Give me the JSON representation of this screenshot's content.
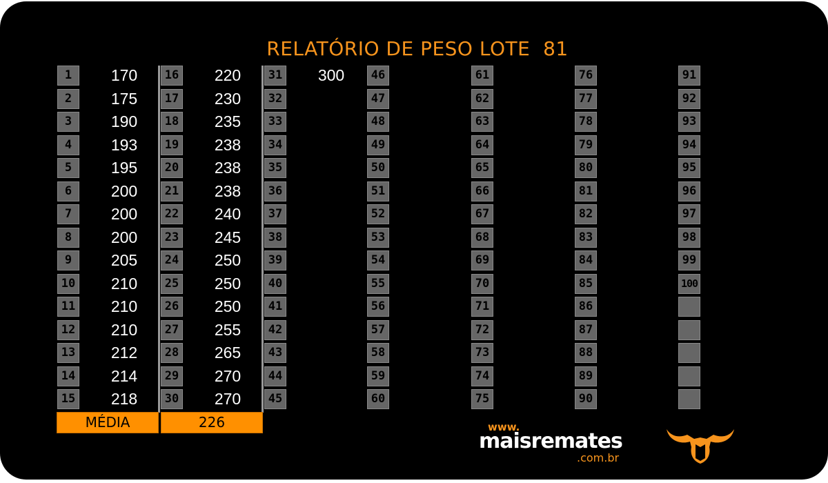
{
  "report": {
    "title": "RELATÓRIO DE PESO LOTE  81"
  },
  "columns": [
    {
      "numbers": [
        "1",
        "2",
        "3",
        "4",
        "5",
        "6",
        "7",
        "8",
        "9",
        "10",
        "11",
        "12",
        "13",
        "14",
        "15"
      ],
      "weights": [
        "170",
        "175",
        "190",
        "193",
        "195",
        "200",
        "200",
        "200",
        "205",
        "210",
        "210",
        "210",
        "212",
        "214",
        "218"
      ]
    },
    {
      "numbers": [
        "16",
        "17",
        "18",
        "19",
        "20",
        "21",
        "22",
        "23",
        "24",
        "25",
        "26",
        "27",
        "28",
        "29",
        "30"
      ],
      "weights": [
        "220",
        "230",
        "235",
        "238",
        "238",
        "238",
        "240",
        "245",
        "250",
        "250",
        "250",
        "255",
        "265",
        "270",
        "270"
      ]
    },
    {
      "numbers": [
        "31",
        "32",
        "33",
        "34",
        "35",
        "36",
        "37",
        "38",
        "39",
        "40",
        "41",
        "42",
        "43",
        "44",
        "45"
      ],
      "weights": [
        "300"
      ]
    },
    {
      "numbers": [
        "46",
        "47",
        "48",
        "49",
        "50",
        "51",
        "52",
        "53",
        "54",
        "55",
        "56",
        "57",
        "58",
        "59",
        "60"
      ],
      "weights": []
    },
    {
      "numbers": [
        "61",
        "62",
        "63",
        "64",
        "65",
        "66",
        "67",
        "68",
        "69",
        "70",
        "71",
        "72",
        "73",
        "74",
        "75"
      ],
      "weights": []
    },
    {
      "numbers": [
        "76",
        "77",
        "78",
        "79",
        "80",
        "81",
        "82",
        "83",
        "84",
        "85",
        "86",
        "87",
        "88",
        "89",
        "90"
      ],
      "weights": []
    },
    {
      "numbers": [
        "91",
        "92",
        "93",
        "94",
        "95",
        "96",
        "97",
        "98",
        "99",
        "100",
        "",
        "",
        "",
        "",
        ""
      ],
      "weights": []
    }
  ],
  "summary": {
    "label": "MÉDIA",
    "value": "226"
  },
  "brand": {
    "www": "www.",
    "name": "maisremates",
    "tld": ".com.br",
    "logo_icon": "bull-head-icon"
  },
  "colors": {
    "background": "#000000",
    "accent": "#f7941d",
    "summary_fill": "#ff9000",
    "cell_fill": "#666666",
    "text": "#ffffff"
  }
}
